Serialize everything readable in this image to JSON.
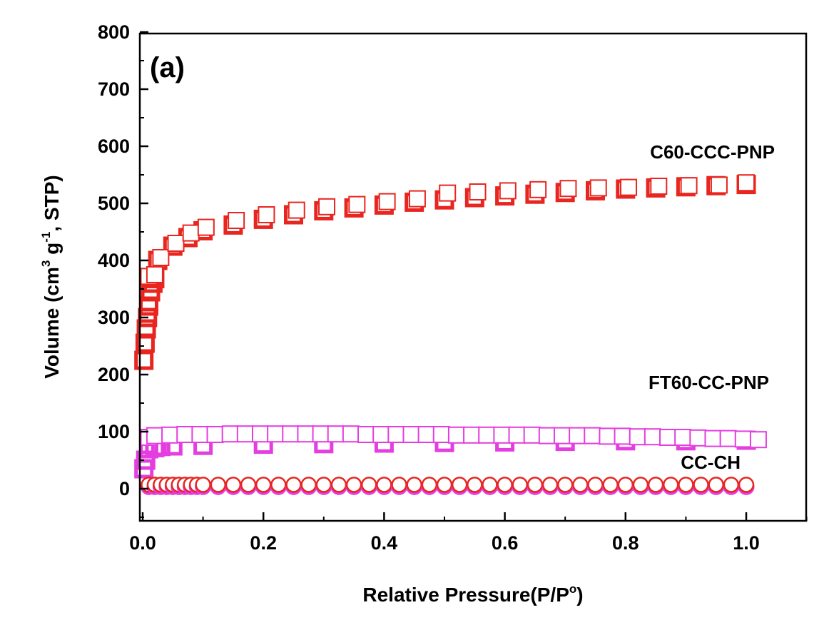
{
  "chart_data": {
    "type": "scatter",
    "panel_label": "(a)",
    "xlabel": "Relative Pressure(P/P°)",
    "xlabel_parts": [
      "Relative Pressure(P/P",
      "o",
      ")"
    ],
    "ylabel": "Volume (cm3 g-1, STP)",
    "ylabel_parts": [
      "Volume (cm",
      "3",
      " g",
      "-1",
      ", STP)"
    ],
    "xlim": [
      0.0,
      1.1
    ],
    "ylim": [
      -50,
      800
    ],
    "xticks": [
      0.0,
      0.2,
      0.4,
      0.6,
      0.8,
      1.0
    ],
    "xtick_labels": [
      "0.0",
      "0.2",
      "0.4",
      "0.6",
      "0.8",
      "1.0"
    ],
    "yticks": [
      0,
      100,
      200,
      300,
      400,
      500,
      600,
      700,
      800
    ],
    "ytick_labels": [
      "0",
      "100",
      "200",
      "300",
      "400",
      "500",
      "600",
      "700",
      "800"
    ],
    "grid": false,
    "series": [
      {
        "name": "C60-CCC-PNP",
        "marker": "square",
        "color": "#e8251f",
        "adsorption": {
          "x": [
            0.002,
            0.004,
            0.006,
            0.008,
            0.01,
            0.013,
            0.017,
            0.02,
            0.025,
            0.05,
            0.075,
            0.1,
            0.15,
            0.2,
            0.25,
            0.3,
            0.35,
            0.4,
            0.45,
            0.5,
            0.55,
            0.6,
            0.65,
            0.7,
            0.75,
            0.8,
            0.85,
            0.9,
            0.95,
            1.0
          ],
          "y": [
            225,
            255,
            280,
            300,
            320,
            345,
            360,
            368,
            400,
            425,
            440,
            452,
            462,
            472,
            480,
            487,
            492,
            497,
            502,
            506,
            510,
            513,
            516,
            519,
            522,
            525,
            527,
            529,
            531,
            533
          ]
        },
        "desorption": {
          "x": [
            0.01,
            0.02,
            0.03,
            0.055,
            0.08,
            0.105,
            0.155,
            0.205,
            0.255,
            0.305,
            0.355,
            0.405,
            0.455,
            0.505,
            0.555,
            0.605,
            0.655,
            0.705,
            0.755,
            0.805,
            0.855,
            0.905,
            0.955,
            1.0
          ],
          "y": [
            372,
            375,
            405,
            430,
            448,
            458,
            470,
            480,
            488,
            494,
            498,
            503,
            508,
            518,
            520,
            522,
            524,
            526,
            527,
            528,
            530,
            531,
            532,
            536
          ]
        }
      },
      {
        "name": "FT60-CC-PNP",
        "marker": "square",
        "color": "#e43de0",
        "adsorption": {
          "x": [
            0.002,
            0.005,
            0.01,
            0.02,
            0.03,
            0.05,
            0.1,
            0.2,
            0.3,
            0.4,
            0.5,
            0.6,
            0.7,
            0.8,
            0.9,
            1.0
          ],
          "y": [
            35,
            50,
            70,
            72,
            74,
            75,
            76,
            78,
            79,
            80,
            81,
            82,
            83,
            84,
            84,
            85
          ]
        },
        "desorption": {
          "x": [
            0.01,
            0.02,
            0.045,
            0.07,
            0.095,
            0.12,
            0.145,
            0.17,
            0.195,
            0.22,
            0.245,
            0.27,
            0.295,
            0.32,
            0.345,
            0.37,
            0.395,
            0.42,
            0.445,
            0.47,
            0.495,
            0.52,
            0.545,
            0.57,
            0.595,
            0.62,
            0.645,
            0.67,
            0.695,
            0.72,
            0.745,
            0.77,
            0.795,
            0.82,
            0.845,
            0.87,
            0.895,
            0.92,
            0.945,
            0.97,
            0.995,
            1.02
          ],
          "y": [
            90,
            93,
            94,
            95,
            95,
            95,
            96,
            96,
            96,
            96,
            96,
            96,
            96,
            96,
            96,
            95,
            95,
            95,
            95,
            95,
            95,
            94,
            94,
            94,
            94,
            94,
            94,
            93,
            93,
            93,
            93,
            92,
            92,
            91,
            91,
            90,
            90,
            89,
            88,
            88,
            87,
            86
          ]
        }
      },
      {
        "name": "CC-CH",
        "marker": "circle",
        "color": "#e8251f",
        "fill": "#ffffff",
        "shadow_color": "#e43de0",
        "adsorption": {
          "x": [
            0.01,
            0.02,
            0.03,
            0.04,
            0.05,
            0.06,
            0.07,
            0.08,
            0.09,
            0.1,
            0.125,
            0.15,
            0.175,
            0.2,
            0.225,
            0.25,
            0.275,
            0.3,
            0.325,
            0.35,
            0.375,
            0.4,
            0.425,
            0.45,
            0.475,
            0.5,
            0.525,
            0.55,
            0.575,
            0.6,
            0.625,
            0.65,
            0.675,
            0.7,
            0.725,
            0.75,
            0.775,
            0.8,
            0.825,
            0.85,
            0.875,
            0.9,
            0.925,
            0.95,
            0.975,
            1.0
          ],
          "y": [
            7,
            7,
            7,
            7,
            7,
            7,
            7,
            7,
            7,
            7,
            7,
            7,
            7,
            7,
            7,
            7,
            7,
            7,
            7,
            7,
            7,
            7,
            7,
            7,
            7,
            7,
            7,
            7,
            7,
            7,
            7,
            7,
            7,
            7,
            7,
            7,
            7,
            7,
            7,
            7,
            7,
            7,
            7,
            7,
            7,
            7
          ]
        }
      }
    ],
    "annotations": [
      "C60-CCC-PNP",
      "FT60-CC-PNP",
      "CC-CH"
    ]
  }
}
